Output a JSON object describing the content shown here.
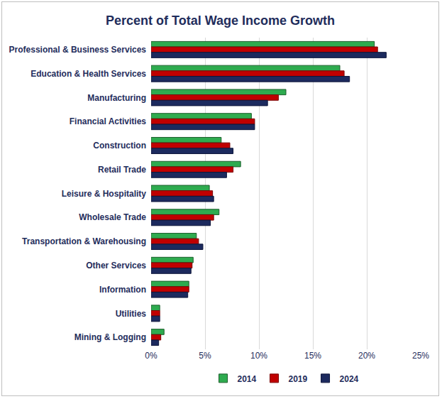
{
  "chart_data": {
    "type": "bar",
    "title": "Percent of Total Wage Income Growth",
    "orientation": "horizontal",
    "grid": true,
    "legend": "bottom",
    "categories": [
      "Professional & Business Services",
      "Education & Health Services",
      "Manufacturing",
      "Financial Activities",
      "Construction",
      "Retail Trade",
      "Leisure & Hospitality",
      "Wholesale Trade",
      "Transportation & Warehousing",
      "Other Services",
      "Information",
      "Utilities",
      "Mining & Logging"
    ],
    "series": [
      {
        "name": "2014",
        "color": "#2eab4f",
        "values": [
          20.7,
          17.5,
          12.5,
          9.3,
          6.5,
          8.3,
          5.4,
          6.3,
          4.2,
          3.9,
          3.5,
          0.8,
          1.2
        ]
      },
      {
        "name": "2019",
        "color": "#c00000",
        "values": [
          21.0,
          17.9,
          11.8,
          9.6,
          7.3,
          7.6,
          5.7,
          5.8,
          4.4,
          3.8,
          3.5,
          0.8,
          0.9
        ]
      },
      {
        "name": "2024",
        "color": "#1c2a5e",
        "values": [
          21.8,
          18.4,
          10.8,
          9.6,
          7.6,
          7.0,
          5.8,
          5.5,
          4.8,
          3.7,
          3.4,
          0.8,
          0.7
        ]
      }
    ],
    "xlim": [
      0,
      25
    ],
    "xticks": [
      {
        "value": 0,
        "label": "0%"
      },
      {
        "value": 5,
        "label": "5%"
      },
      {
        "value": 10,
        "label": "10%"
      },
      {
        "value": 15,
        "label": "15%"
      },
      {
        "value": 20,
        "label": "20%"
      },
      {
        "value": 25,
        "label": "25%"
      }
    ]
  }
}
